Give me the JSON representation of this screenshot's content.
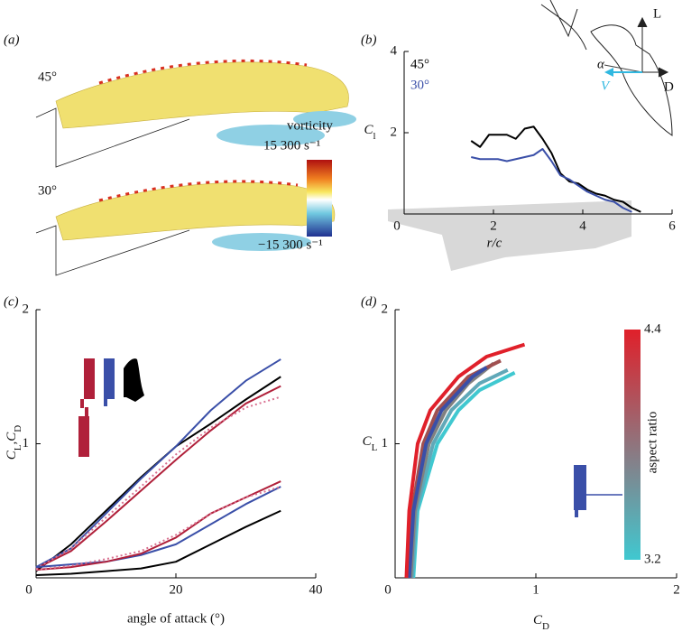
{
  "panel_a": {
    "panel": "(a)",
    "angles": [
      "45°",
      "30°"
    ],
    "colorbar": {
      "title": "vorticity",
      "max_label": "15 300 s⁻¹",
      "min_label": "−15 300 s⁻¹"
    }
  },
  "diagram": {
    "lift": "L",
    "drag": "D",
    "alpha": "α",
    "velocity": "V"
  },
  "chart_data": [
    {
      "type": "line",
      "panel": "(b)",
      "xlabel": "r/c",
      "ylabel": [
        [
          "C",
          "l"
        ]
      ],
      "xlim": [
        0,
        6
      ],
      "ylim": [
        0,
        4
      ],
      "xticks": [
        0,
        2,
        4,
        6
      ],
      "yticks": [
        2,
        4
      ],
      "series": [
        {
          "name": "45°",
          "color": "#000000",
          "x": [
            1.5,
            1.7,
            1.9,
            2.1,
            2.3,
            2.5,
            2.7,
            2.9,
            3.1,
            3.3,
            3.5,
            3.7,
            3.9,
            4.1,
            4.3,
            4.5,
            4.7,
            4.9,
            5.1,
            5.3
          ],
          "values": [
            1.8,
            1.65,
            1.95,
            1.95,
            1.95,
            1.85,
            2.1,
            2.15,
            1.85,
            1.5,
            1.0,
            0.8,
            0.75,
            0.6,
            0.5,
            0.45,
            0.35,
            0.3,
            0.15,
            0.05
          ]
        },
        {
          "name": "30°",
          "color": "#3a4fa8",
          "x": [
            1.5,
            1.7,
            1.9,
            2.1,
            2.3,
            2.5,
            2.7,
            2.9,
            3.1,
            3.3,
            3.5,
            3.7,
            3.9,
            4.1,
            4.3,
            4.5,
            4.7,
            4.9,
            5.1
          ],
          "values": [
            1.4,
            1.35,
            1.35,
            1.35,
            1.3,
            1.35,
            1.4,
            1.45,
            1.6,
            1.3,
            0.95,
            0.85,
            0.7,
            0.55,
            0.45,
            0.35,
            0.3,
            0.15,
            0.05
          ]
        }
      ]
    },
    {
      "type": "line",
      "panel": "(c)",
      "xlabel": "angle of attack (°)",
      "ylabel": [
        [
          "C",
          "L"
        ],
        [
          ",C",
          "D"
        ]
      ],
      "xlim": [
        0,
        40
      ],
      "ylim": [
        0,
        2
      ],
      "xticks": [
        0,
        20,
        40
      ],
      "yticks": [
        1,
        2
      ],
      "x": [
        0,
        5,
        10,
        15,
        20,
        25,
        30,
        35
      ],
      "series": [
        {
          "color": "#000000",
          "values": [
            0.05,
            0.25,
            0.5,
            0.75,
            0.98,
            1.15,
            1.33,
            1.5
          ]
        },
        {
          "color": "#3a4fa8",
          "values": [
            0.08,
            0.22,
            0.48,
            0.74,
            0.98,
            1.25,
            1.47,
            1.63
          ]
        },
        {
          "color": "#b0203a",
          "values": [
            0.07,
            0.2,
            0.42,
            0.65,
            0.88,
            1.1,
            1.3,
            1.43
          ]
        },
        {
          "color": "#d97090",
          "dashed": true,
          "values": [
            0.07,
            0.22,
            0.45,
            0.68,
            0.92,
            1.12,
            1.27,
            1.35
          ]
        },
        {
          "color": "#000000",
          "values": [
            0.02,
            0.03,
            0.05,
            0.07,
            0.12,
            0.25,
            0.38,
            0.5
          ]
        },
        {
          "color": "#3a4fa8",
          "values": [
            0.08,
            0.1,
            0.12,
            0.17,
            0.25,
            0.4,
            0.55,
            0.68
          ]
        },
        {
          "color": "#b0203a",
          "values": [
            0.06,
            0.08,
            0.12,
            0.18,
            0.3,
            0.48,
            0.6,
            0.72
          ]
        },
        {
          "color": "#d97090",
          "dashed": true,
          "values": [
            0.06,
            0.09,
            0.14,
            0.2,
            0.32,
            0.48,
            0.6,
            0.68
          ]
        }
      ]
    },
    {
      "type": "line",
      "panel": "(d)",
      "xlabel": [
        [
          "C",
          "D"
        ]
      ],
      "ylabel": [
        [
          "C",
          "L"
        ]
      ],
      "xlim": [
        0,
        2
      ],
      "ylim": [
        0,
        2
      ],
      "xticks": [
        0,
        1,
        2
      ],
      "yticks": [
        1,
        2
      ],
      "series": [
        {
          "color": "#40c8d0",
          "x": [
            0.13,
            0.16,
            0.3,
            0.45,
            0.6,
            0.85
          ],
          "values": [
            0,
            0.5,
            1.0,
            1.25,
            1.4,
            1.53
          ]
        },
        {
          "color": "#60a8b8",
          "x": [
            0.12,
            0.15,
            0.27,
            0.4,
            0.6,
            0.8
          ],
          "values": [
            0,
            0.5,
            1.0,
            1.25,
            1.45,
            1.55
          ]
        },
        {
          "color": "#808080",
          "x": [
            0.11,
            0.14,
            0.24,
            0.36,
            0.52,
            0.7
          ],
          "values": [
            0,
            0.5,
            1.0,
            1.25,
            1.45,
            1.6
          ]
        },
        {
          "color": "#a05050",
          "x": [
            0.1,
            0.12,
            0.2,
            0.3,
            0.52,
            0.75
          ],
          "values": [
            0,
            0.5,
            1.0,
            1.25,
            1.5,
            1.62
          ]
        },
        {
          "color": "#3a4fa8",
          "x": [
            0.1,
            0.13,
            0.22,
            0.33,
            0.55,
            0.65
          ],
          "values": [
            0,
            0.5,
            1.0,
            1.25,
            1.5,
            1.57
          ]
        },
        {
          "color": "#e0202a",
          "x": [
            0.08,
            0.1,
            0.16,
            0.25,
            0.45,
            0.65,
            0.92
          ],
          "values": [
            0,
            0.5,
            1.0,
            1.25,
            1.5,
            1.65,
            1.74
          ]
        }
      ],
      "colorbar": {
        "label": "aspect ratio",
        "clim": [
          3.2,
          4.4
        ],
        "cticks": [
          3.2,
          4.4
        ],
        "colors": [
          "#40c8d0",
          "#e0202a"
        ]
      }
    }
  ]
}
